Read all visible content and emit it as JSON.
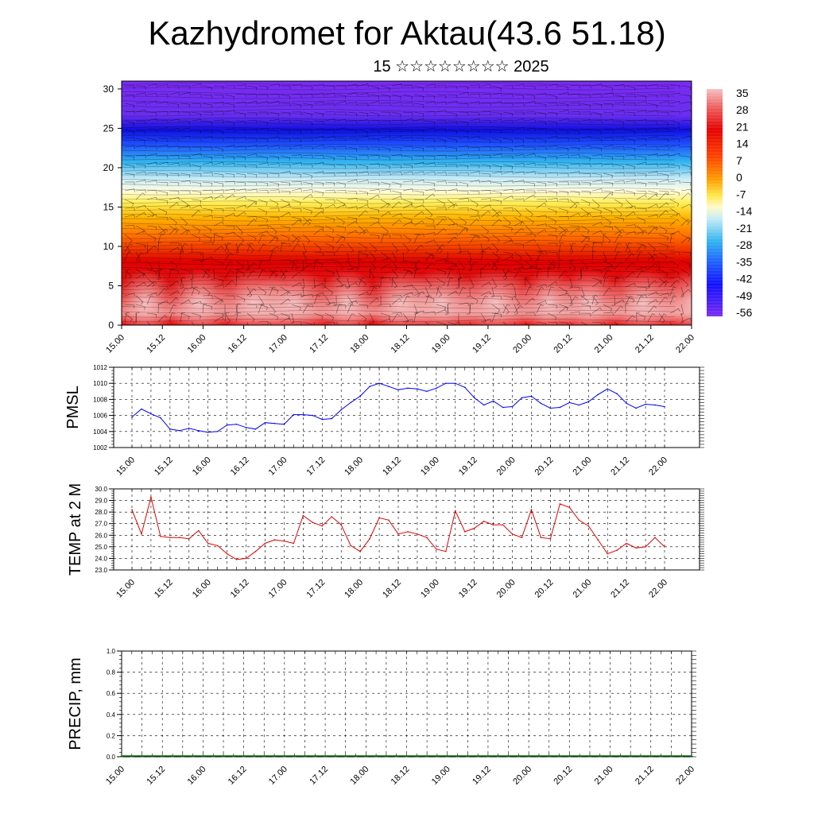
{
  "header": {
    "title": "Kazhydromet for Aktau(43.6 51.18)",
    "subtitle": "15 ☆☆☆☆☆☆☆☆ 2025"
  },
  "chart_data": [
    {
      "type": "heatmap",
      "title": "",
      "xlabel": "",
      "ylabel": "",
      "ylim": [
        0,
        31
      ],
      "x_tick_labels": [
        "15.00",
        "15.12",
        "16.00",
        "16.12",
        "17.00",
        "17.12",
        "18.00",
        "18.12",
        "19.00",
        "19.12",
        "20.00",
        "20.12",
        "21.00",
        "21.12",
        "22.00"
      ],
      "y_ticks": [
        0,
        5,
        10,
        15,
        20,
        25,
        30
      ],
      "y_tick_labels": [
        "0",
        "5",
        "10",
        "15",
        "20",
        "25",
        "30"
      ],
      "colorbar_labels": [
        "35",
        "28",
        "21",
        "14",
        "7",
        "0",
        "-7",
        "-14",
        "-21",
        "-28",
        "-35",
        "-42",
        "-49",
        "-56"
      ],
      "colorbar_placement": "right",
      "wind_barbs_overlay": true,
      "temperature_profile": [
        {
          "height": 0,
          "value": 30
        },
        {
          "height": 4,
          "value": 28
        },
        {
          "height": 8,
          "value": 18
        },
        {
          "height": 11,
          "value": 5
        },
        {
          "height": 14,
          "value": -7
        },
        {
          "height": 17,
          "value": -15
        },
        {
          "height": 20,
          "value": -30
        },
        {
          "height": 22,
          "value": -42
        },
        {
          "height": 25,
          "value": -56
        },
        {
          "height": 28,
          "value": -62
        },
        {
          "height": 31,
          "value": -62
        }
      ],
      "colors": {
        "warm_max": "#f4b8b8",
        "red": "#e60000",
        "orange": "#ff7a00",
        "yellow": "#ffe94d",
        "light_blue": "#bfe8f5",
        "blue": "#2a2aff",
        "violet": "#7a2cf2"
      }
    },
    {
      "type": "line",
      "title": "",
      "xlabel": "",
      "ylabel": "PMSL",
      "ylim": [
        1002,
        1012
      ],
      "y_ticks": [
        1002,
        1004,
        1006,
        1008,
        1010,
        1012
      ],
      "y_tick_labels": [
        "1002",
        "1004",
        "1006",
        "1008",
        "1010",
        "1012"
      ],
      "x_tick_labels": [
        "15.00",
        "15.12",
        "16.00",
        "16.12",
        "17.00",
        "17.12",
        "18.00",
        "18.12",
        "19.00",
        "19.12",
        "20.00",
        "20.12",
        "21.00",
        "21.12",
        "22.00"
      ],
      "x": [
        0,
        3,
        6,
        9,
        12,
        15,
        18,
        21,
        24,
        27,
        30,
        33,
        36,
        39,
        42,
        45,
        48,
        51,
        54,
        57,
        60,
        63,
        66,
        69,
        72,
        75,
        78,
        81,
        84,
        87,
        90,
        93,
        96,
        99,
        102,
        105,
        108,
        111,
        114,
        117,
        120,
        123,
        126,
        129,
        132,
        135,
        138,
        141,
        144,
        147,
        150,
        153,
        156,
        159,
        162,
        165,
        168
      ],
      "series": [
        {
          "values": [
            1005.8,
            1006.8,
            1006.2,
            1005.7,
            1004.3,
            1004.1,
            1004.4,
            1004.1,
            1003.9,
            1004.0,
            1004.8,
            1004.9,
            1004.5,
            1004.3,
            1005.1,
            1005.0,
            1004.9,
            1006.1,
            1006.1,
            1006.0,
            1005.5,
            1005.6,
            1006.7,
            1007.6,
            1008.4,
            1009.6,
            1010.0,
            1009.6,
            1009.2,
            1009.4,
            1009.3,
            1009.0,
            1009.4,
            1010.0,
            1010.0,
            1009.5,
            1008.2,
            1007.3,
            1007.8,
            1007.0,
            1007.1,
            1008.2,
            1008.4,
            1007.5,
            1006.9,
            1007.0,
            1007.6,
            1007.3,
            1007.7,
            1008.6,
            1009.3,
            1008.7,
            1007.5,
            1006.9,
            1007.4,
            1007.3,
            1007.1
          ],
          "color": "#0000ff"
        }
      ]
    },
    {
      "type": "line",
      "title": "",
      "xlabel": "",
      "ylabel": "TEMP at 2 M",
      "ylim": [
        23.0,
        30.0
      ],
      "y_ticks": [
        23,
        24,
        25,
        26,
        27,
        28,
        29,
        30
      ],
      "y_tick_labels": [
        "23.0",
        "24.0",
        "25.0",
        "26.0",
        "27.0",
        "28.0",
        "29.0",
        "30.0"
      ],
      "x_tick_labels": [
        "15.00",
        "15.12",
        "16.00",
        "16.12",
        "17.00",
        "17.12",
        "18.00",
        "18.12",
        "19.00",
        "19.12",
        "20.00",
        "20.12",
        "21.00",
        "21.12",
        "22.00"
      ],
      "x": [
        0,
        3,
        6,
        9,
        12,
        15,
        18,
        21,
        24,
        27,
        30,
        33,
        36,
        39,
        42,
        45,
        48,
        51,
        54,
        57,
        60,
        63,
        66,
        69,
        72,
        75,
        78,
        81,
        84,
        87,
        90,
        93,
        96,
        99,
        102,
        105,
        108,
        111,
        114,
        117,
        120,
        123,
        126,
        129,
        132,
        135,
        138,
        141,
        144,
        147,
        150,
        153,
        156,
        159,
        162,
        165,
        168
      ],
      "series": [
        {
          "values": [
            28.2,
            26.1,
            29.3,
            25.9,
            25.8,
            25.8,
            25.7,
            26.4,
            25.3,
            25.1,
            24.4,
            23.9,
            24.0,
            24.6,
            25.3,
            25.6,
            25.5,
            25.3,
            27.7,
            27.1,
            26.8,
            27.6,
            26.9,
            25.1,
            24.6,
            25.7,
            27.5,
            27.3,
            26.1,
            26.3,
            26.1,
            25.8,
            24.8,
            24.6,
            28.1,
            26.3,
            26.6,
            27.2,
            26.9,
            26.9,
            26.1,
            25.8,
            28.2,
            25.8,
            25.7,
            28.7,
            28.4,
            27.3,
            26.8,
            25.6,
            24.4,
            24.7,
            25.3,
            24.9,
            25.0,
            25.8,
            25.0
          ],
          "color": "#e00000"
        }
      ]
    },
    {
      "type": "bar",
      "title": "",
      "xlabel": "",
      "ylabel": "PRECIP, mm",
      "ylim": [
        0.0,
        1.0
      ],
      "y_ticks": [
        0.0,
        0.2,
        0.4,
        0.6,
        0.8,
        1.0
      ],
      "y_tick_labels": [
        "0.0",
        "0.2",
        "0.4",
        "0.6",
        "0.8",
        "1.0"
      ],
      "x_tick_labels": [
        "15.00",
        "15.12",
        "16.00",
        "16.12",
        "17.00",
        "17.12",
        "18.00",
        "18.12",
        "19.00",
        "19.12",
        "20.00",
        "20.12",
        "21.00",
        "21.12",
        "22.00"
      ],
      "values": [
        0,
        0,
        0,
        0,
        0,
        0,
        0,
        0,
        0,
        0,
        0,
        0,
        0,
        0,
        0,
        0,
        0,
        0,
        0,
        0,
        0,
        0,
        0,
        0,
        0,
        0,
        0,
        0,
        0,
        0,
        0,
        0,
        0,
        0,
        0,
        0,
        0,
        0,
        0,
        0,
        0,
        0,
        0,
        0,
        0,
        0,
        0,
        0,
        0,
        0,
        0,
        0,
        0,
        0,
        0,
        0,
        0
      ],
      "color": "#006400"
    }
  ]
}
